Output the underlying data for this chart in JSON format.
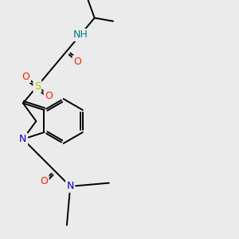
{
  "bg_color": "#ebebeb",
  "atom_colors": {
    "C": "#000000",
    "N_indole": "#0000cc",
    "N_amide": "#0000cc",
    "NH": "#008080",
    "O": "#ff2200",
    "S": "#bbbb00"
  },
  "bond_color": "#000000",
  "bond_width": 1.4,
  "font_size": 9
}
